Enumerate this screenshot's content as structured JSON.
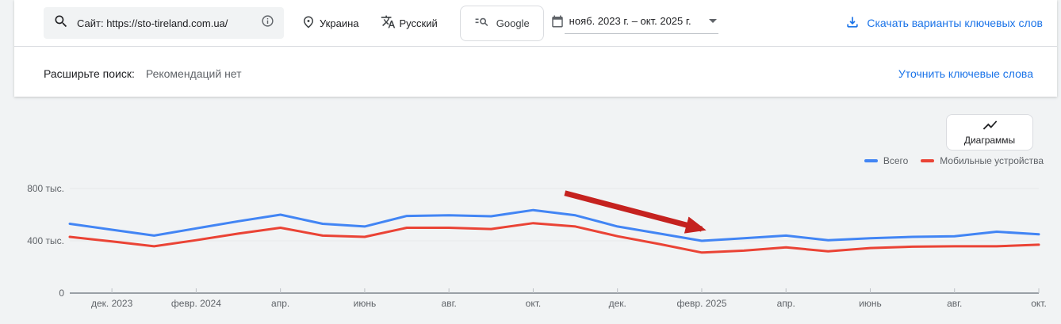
{
  "colors": {
    "accent_blue": "#1a73e8",
    "page_bg": "#f1f3f4",
    "annotation_red": "#c5221f"
  },
  "toolbar": {
    "site_value": "Сайт: https://sto-tireland.com.ua/",
    "location": "Украина",
    "language": "Русский",
    "network": "Google",
    "date_range": "нояб. 2023 г. – окт. 2025 г.",
    "download_label": "Скачать варианты ключевых слов"
  },
  "refine_bar": {
    "expand_label": "Расширьте поиск:",
    "recommendations_status": "Рекомендаций нет",
    "refine_link": "Уточнить ключевые слова"
  },
  "chart_section": {
    "charts_button_label": "Диаграммы"
  },
  "chart_data": {
    "type": "line",
    "title": "",
    "units": "monthly searches",
    "x": [
      "нояб. 2023",
      "дек. 2023",
      "янв. 2024",
      "февр. 2024",
      "март 2024",
      "апр. 2024",
      "май 2024",
      "июнь 2024",
      "июль 2024",
      "авг. 2024",
      "сент. 2024",
      "окт. 2024",
      "нояб. 2024",
      "дек. 2024",
      "янв. 2025",
      "февр. 2025",
      "март 2025",
      "апр. 2025",
      "май 2025",
      "июнь 2025",
      "июль 2025",
      "авг. 2025",
      "сент. 2025",
      "окт. 2025"
    ],
    "xtick_indices": [
      1,
      3,
      5,
      7,
      9,
      11,
      13,
      15,
      17,
      19,
      21,
      23
    ],
    "xtick_labels": [
      "дек. 2023",
      "февр. 2024",
      "апр.",
      "июнь",
      "авг.",
      "окт.",
      "дек.",
      "февр. 2025",
      "апр.",
      "июнь",
      "авг.",
      "окт."
    ],
    "ylim": [
      0,
      800000
    ],
    "yticks": [
      0,
      400000,
      800000
    ],
    "ytick_labels": [
      "0",
      "400 тыс.",
      "800 тыс."
    ],
    "grid": true,
    "legend_position": "top-right",
    "series": [
      {
        "name": "Всего",
        "color": "#4285f4",
        "values": [
          530000,
          485000,
          440000,
          495000,
          550000,
          600000,
          530000,
          510000,
          590000,
          595000,
          588000,
          635000,
          595000,
          510000,
          455000,
          400000,
          420000,
          440000,
          405000,
          420000,
          430000,
          435000,
          470000,
          450000
        ]
      },
      {
        "name": "Мобильные устройства",
        "color": "#ea4335",
        "values": [
          430000,
          395000,
          358000,
          405000,
          455000,
          500000,
          440000,
          430000,
          500000,
          500000,
          490000,
          535000,
          510000,
          435000,
          375000,
          310000,
          325000,
          350000,
          320000,
          345000,
          355000,
          358000,
          358000,
          370000
        ]
      }
    ],
    "annotation": {
      "type": "arrow",
      "color": "#c5221f",
      "from": {
        "x_index": 11.75,
        "value": 765000
      },
      "to": {
        "x_index": 15.0,
        "value": 490000
      },
      "meaning": "downward trend highlight"
    }
  }
}
